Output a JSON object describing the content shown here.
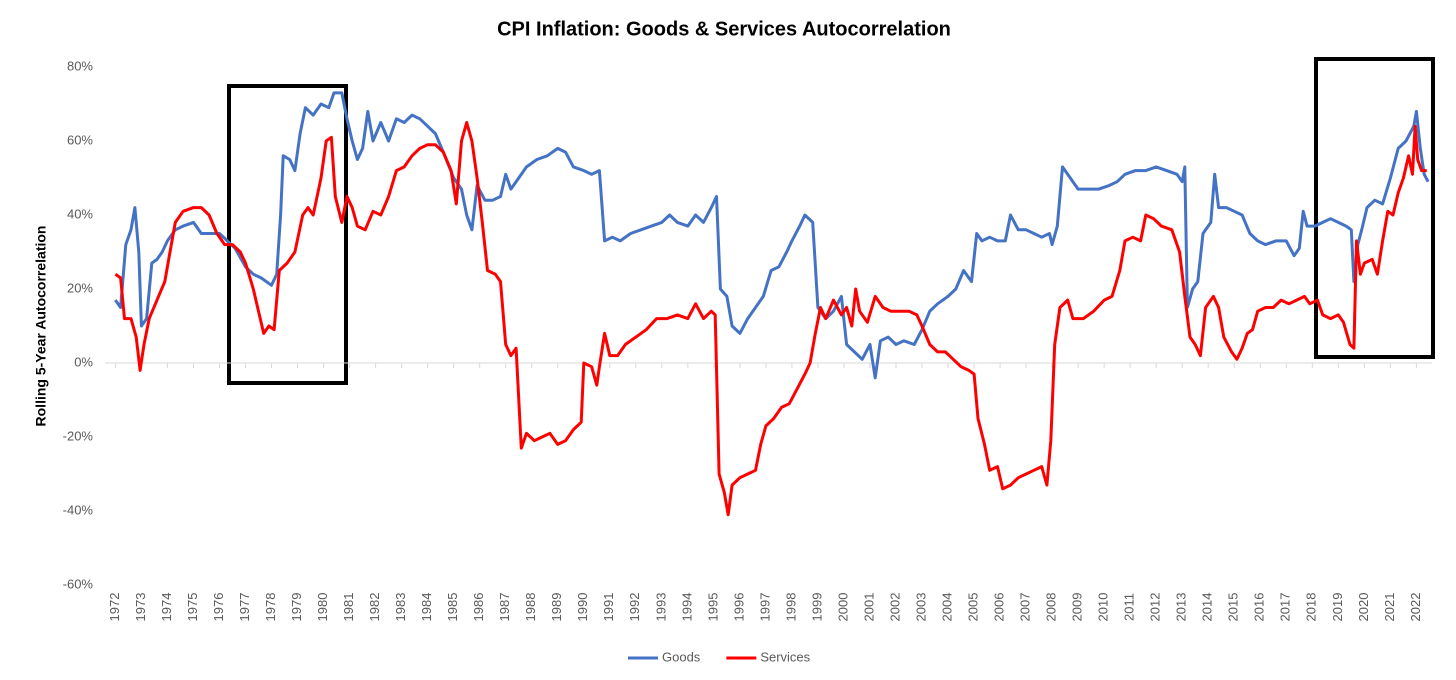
{
  "chart_data": {
    "type": "line",
    "title": "CPI Inflation: Goods & Services Autocorrelation",
    "y_label": "Rolling 5-Year Autocorrelation",
    "xlim": [
      1971.6,
      2022.6
    ],
    "xticks": [
      1972,
      1973,
      1974,
      1975,
      1976,
      1977,
      1978,
      1979,
      1980,
      1981,
      1982,
      1983,
      1984,
      1985,
      1986,
      1987,
      1988,
      1989,
      1990,
      1991,
      1992,
      1993,
      1994,
      1995,
      1996,
      1997,
      1998,
      1999,
      2000,
      2001,
      2002,
      2003,
      2004,
      2005,
      2006,
      2007,
      2008,
      2009,
      2010,
      2011,
      2012,
      2013,
      2014,
      2015,
      2016,
      2017,
      2018,
      2019,
      2020,
      2021,
      2022
    ],
    "ylim": [
      -60,
      80
    ],
    "yticks": [
      {
        "value": -60,
        "label": "-60%"
      },
      {
        "value": -40,
        "label": "-40%"
      },
      {
        "value": -20,
        "label": "-20%"
      },
      {
        "value": 0,
        "label": "0%"
      },
      {
        "value": 20,
        "label": "20%"
      },
      {
        "value": 40,
        "label": "40%"
      },
      {
        "value": 60,
        "label": "60%"
      },
      {
        "value": 80,
        "label": "80%"
      }
    ],
    "grid": false,
    "legend": "bottom",
    "series": [
      {
        "name": "Goods",
        "color": "#4472c4",
        "x": [
          1972.0,
          1972.2,
          1972.4,
          1972.6,
          1972.75,
          1972.9,
          1973.0,
          1973.2,
          1973.4,
          1973.6,
          1973.8,
          1974.0,
          1974.3,
          1974.6,
          1975.0,
          1975.3,
          1975.6,
          1976.0,
          1976.3,
          1976.6,
          1977.0,
          1977.3,
          1977.6,
          1978.0,
          1978.2,
          1978.35,
          1978.45,
          1978.7,
          1978.9,
          1979.1,
          1979.3,
          1979.6,
          1979.9,
          1980.2,
          1980.4,
          1980.7,
          1980.9,
          1981.1,
          1981.3,
          1981.5,
          1981.7,
          1981.9,
          1982.2,
          1982.5,
          1982.8,
          1983.1,
          1983.4,
          1983.7,
          1984.0,
          1984.3,
          1984.6,
          1985.0,
          1985.3,
          1985.5,
          1985.7,
          1985.9,
          1986.2,
          1986.5,
          1986.8,
          1987.0,
          1987.2,
          1987.5,
          1987.8,
          1988.2,
          1988.6,
          1989.0,
          1989.3,
          1989.6,
          1990.0,
          1990.3,
          1990.6,
          1990.8,
          1991.1,
          1991.4,
          1991.8,
          1992.2,
          1992.6,
          1993.0,
          1993.3,
          1993.6,
          1994.0,
          1994.3,
          1994.6,
          1994.9,
          1995.1,
          1995.25,
          1995.5,
          1995.7,
          1996.0,
          1996.3,
          1996.6,
          1996.9,
          1997.2,
          1997.5,
          1997.8,
          1998.0,
          1998.3,
          1998.5,
          1998.8,
          1999.0,
          1999.3,
          1999.6,
          1999.9,
          2000.1,
          2000.4,
          2000.7,
          2001.0,
          2001.2,
          2001.4,
          2001.7,
          2002.0,
          2002.3,
          2002.7,
          2003.0,
          2003.3,
          2003.6,
          2004.0,
          2004.3,
          2004.6,
          2004.9,
          2005.1,
          2005.3,
          2005.6,
          2005.9,
          2006.2,
          2006.4,
          2006.7,
          2007.0,
          2007.3,
          2007.6,
          2007.9,
          2008.0,
          2008.2,
          2008.4,
          2008.7,
          2009.0,
          2009.4,
          2009.8,
          2010.2,
          2010.5,
          2010.8,
          2011.2,
          2011.6,
          2012.0,
          2012.4,
          2012.8,
          2013.0,
          2013.1,
          2013.2,
          2013.4,
          2013.6,
          2013.8,
          2014.1,
          2014.25,
          2014.4,
          2014.7,
          2015.0,
          2015.3,
          2015.6,
          2015.9,
          2016.2,
          2016.6,
          2017.0,
          2017.3,
          2017.5,
          2017.65,
          2017.8,
          2018.1,
          2018.4,
          2018.7,
          2019.0,
          2019.3,
          2019.5,
          2019.6,
          2019.75,
          2019.9,
          2020.1,
          2020.4,
          2020.7,
          2021.0,
          2021.3,
          2021.6,
          2021.9,
          2022.0,
          2022.15,
          2022.3,
          2022.45
        ],
        "values": [
          17,
          15,
          32,
          36,
          42,
          30,
          10,
          12,
          27,
          28,
          30,
          33,
          36,
          37,
          38,
          35,
          35,
          35,
          33,
          31,
          26,
          24,
          23,
          21,
          24,
          40,
          56,
          55,
          52,
          62,
          69,
          67,
          70,
          69,
          73,
          73,
          66,
          60,
          55,
          58,
          68,
          60,
          65,
          60,
          66,
          65,
          67,
          66,
          64,
          62,
          57,
          50,
          47,
          40,
          36,
          48,
          44,
          44,
          45,
          51,
          47,
          50,
          53,
          55,
          56,
          58,
          57,
          53,
          52,
          51,
          52,
          33,
          34,
          33,
          35,
          36,
          37,
          38,
          40,
          38,
          37,
          40,
          38,
          42,
          45,
          20,
          18,
          10,
          8,
          12,
          15,
          18,
          25,
          26,
          30,
          33,
          37,
          40,
          38,
          15,
          12,
          14,
          18,
          5,
          3,
          1,
          5,
          -4,
          6,
          7,
          5,
          6,
          5,
          9,
          14,
          16,
          18,
          20,
          25,
          22,
          35,
          33,
          34,
          33,
          33,
          40,
          36,
          36,
          35,
          34,
          35,
          32,
          37,
          53,
          50,
          47,
          47,
          47,
          48,
          49,
          51,
          52,
          52,
          53,
          52,
          51,
          49,
          53,
          15,
          20,
          22,
          35,
          38,
          51,
          42,
          42,
          41,
          40,
          35,
          33,
          32,
          33,
          33,
          29,
          31,
          41,
          37,
          37,
          38,
          39,
          38,
          37,
          36,
          22,
          32,
          36,
          42,
          44,
          43,
          50,
          58,
          60,
          64,
          68,
          58,
          51,
          49
        ]
      },
      {
        "name": "Services",
        "color": "#ff0000",
        "x": [
          1972.0,
          1972.2,
          1972.35,
          1972.6,
          1972.8,
          1972.95,
          1973.1,
          1973.3,
          1973.6,
          1973.9,
          1974.1,
          1974.3,
          1974.6,
          1975.0,
          1975.3,
          1975.6,
          1975.9,
          1976.2,
          1976.5,
          1976.8,
          1977.0,
          1977.3,
          1977.5,
          1977.7,
          1977.9,
          1978.1,
          1978.3,
          1978.6,
          1978.9,
          1979.2,
          1979.4,
          1979.6,
          1979.9,
          1980.1,
          1980.3,
          1980.45,
          1980.7,
          1980.9,
          1981.1,
          1981.3,
          1981.6,
          1981.9,
          1982.2,
          1982.5,
          1982.8,
          1983.1,
          1983.4,
          1983.7,
          1984.0,
          1984.3,
          1984.6,
          1984.9,
          1985.1,
          1985.3,
          1985.5,
          1985.7,
          1985.9,
          1986.1,
          1986.3,
          1986.6,
          1986.8,
          1987.0,
          1987.2,
          1987.4,
          1987.6,
          1987.8,
          1988.1,
          1988.4,
          1988.7,
          1989.0,
          1989.3,
          1989.6,
          1989.9,
          1990.0,
          1990.3,
          1990.5,
          1990.6,
          1990.8,
          1991.0,
          1991.3,
          1991.6,
          1992.0,
          1992.4,
          1992.8,
          1993.2,
          1993.6,
          1994.0,
          1994.3,
          1994.6,
          1994.9,
          1995.05,
          1995.2,
          1995.4,
          1995.55,
          1995.7,
          1996.0,
          1996.3,
          1996.6,
          1996.8,
          1997.0,
          1997.3,
          1997.6,
          1997.9,
          1998.2,
          1998.5,
          1998.7,
          1998.9,
          1999.1,
          1999.3,
          1999.6,
          1999.9,
          2000.1,
          2000.3,
          2000.45,
          2000.6,
          2000.9,
          2001.2,
          2001.5,
          2001.8,
          2002.1,
          2002.5,
          2002.8,
          2003.0,
          2003.3,
          2003.6,
          2003.9,
          2004.2,
          2004.5,
          2004.8,
          2005.0,
          2005.15,
          2005.4,
          2005.6,
          2005.9,
          2006.1,
          2006.4,
          2006.7,
          2007.0,
          2007.3,
          2007.6,
          2007.8,
          2007.95,
          2008.1,
          2008.3,
          2008.6,
          2008.8,
          2009.2,
          2009.6,
          2010.0,
          2010.3,
          2010.6,
          2010.8,
          2011.1,
          2011.4,
          2011.6,
          2011.9,
          2012.2,
          2012.6,
          2012.9,
          2013.0,
          2013.1,
          2013.3,
          2013.5,
          2013.7,
          2013.9,
          2014.2,
          2014.4,
          2014.6,
          2014.9,
          2015.1,
          2015.3,
          2015.5,
          2015.7,
          2015.9,
          2016.2,
          2016.5,
          2016.8,
          2017.1,
          2017.4,
          2017.7,
          2017.9,
          2018.2,
          2018.4,
          2018.7,
          2019.0,
          2019.2,
          2019.45,
          2019.6,
          2019.7,
          2019.85,
          2020.0,
          2020.3,
          2020.5,
          2020.7,
          2020.9,
          2021.1,
          2021.3,
          2021.5,
          2021.7,
          2021.85,
          2021.95,
          2022.05,
          2022.2,
          2022.4
        ],
        "values": [
          24,
          23,
          12,
          12,
          7,
          -2,
          5,
          12,
          17,
          22,
          30,
          38,
          41,
          42,
          42,
          40,
          35,
          32,
          32,
          30,
          27,
          20,
          14,
          8,
          10,
          9,
          25,
          27,
          30,
          40,
          42,
          40,
          50,
          60,
          61,
          45,
          38,
          45,
          42,
          37,
          36,
          41,
          40,
          45,
          52,
          53,
          56,
          58,
          59,
          59,
          57,
          52,
          43,
          60,
          65,
          60,
          50,
          38,
          25,
          24,
          22,
          5,
          2,
          4,
          -23,
          -19,
          -21,
          -20,
          -19,
          -22,
          -21,
          -18,
          -16,
          0,
          -1,
          -6,
          -1,
          8,
          2,
          2,
          5,
          7,
          9,
          12,
          12,
          13,
          12,
          16,
          12,
          14,
          13,
          -30,
          -35,
          -41,
          -33,
          -31,
          -30,
          -29,
          -22,
          -17,
          -15,
          -12,
          -11,
          -7,
          -3,
          0,
          8,
          15,
          12,
          17,
          13,
          15,
          10,
          20,
          14,
          11,
          18,
          15,
          14,
          14,
          14,
          13,
          10,
          5,
          3,
          3,
          1,
          -1,
          -2,
          -3,
          -15,
          -22,
          -29,
          -28,
          -34,
          -33,
          -31,
          -30,
          -29,
          -28,
          -33,
          -21,
          5,
          15,
          17,
          12,
          12,
          14,
          17,
          18,
          25,
          33,
          34,
          33,
          40,
          39,
          37,
          36,
          30,
          24,
          18,
          7,
          5,
          2,
          15,
          18,
          15,
          7,
          3,
          1,
          4,
          8,
          9,
          14,
          15,
          15,
          17,
          16,
          17,
          18,
          16,
          17,
          13,
          12,
          13,
          11,
          5,
          4,
          33,
          24,
          27,
          28,
          24,
          33,
          41,
          40,
          46,
          50,
          56,
          51,
          64,
          55,
          52,
          52
        ]
      }
    ]
  }
}
